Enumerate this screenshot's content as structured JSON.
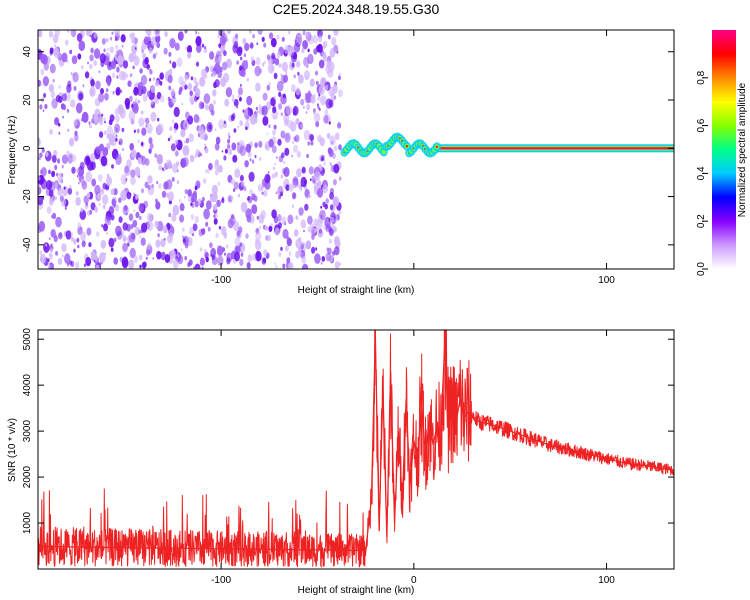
{
  "title": "C2E5.2024.348.19.55.G30",
  "spectrogram": {
    "xlabel": "Height of straight line (km)",
    "ylabel": "Frequency (Hz)",
    "xlim": [
      -195,
      135
    ],
    "ylim": [
      -50,
      49
    ],
    "x_ticks": [
      -100,
      0,
      100
    ],
    "x_tick_labels": [
      "-100",
      "",
      "100"
    ],
    "y_ticks": [
      -40,
      -20,
      0,
      20,
      40
    ],
    "y_tick_labels": [
      "-40",
      "-20",
      "0",
      "20",
      "40"
    ],
    "noise_region_x": [
      -195,
      -38
    ],
    "signal_band_hz": 0.5
  },
  "colorbar": {
    "label": "Normalized spectral amplitude",
    "range": [
      0.0,
      1.0
    ],
    "ticks": [
      0.0,
      0.2,
      0.4,
      0.6,
      0.8
    ],
    "tick_labels": [
      "0.0",
      "0.2",
      "0.4",
      "0.6",
      "0.8"
    ],
    "colors": [
      "#ffffff",
      "#cc99ff",
      "#8800ff",
      "#0000ff",
      "#00ccff",
      "#00ff88",
      "#88ff00",
      "#ffff00",
      "#ff8800",
      "#ff0000",
      "#ff0088"
    ]
  },
  "chart_data": {
    "type": "line",
    "title": "",
    "xlabel": "Height of straight line (km)",
    "ylabel": "SNR (10 * v/v)",
    "xlim": [
      -195,
      135
    ],
    "ylim": [
      0,
      5200
    ],
    "x_ticks": [
      -100,
      0,
      100
    ],
    "x_tick_labels": [
      "-100",
      "0",
      "100"
    ],
    "y_ticks": [
      1000,
      2000,
      3000,
      4000,
      5000
    ],
    "y_tick_labels": [
      "1000",
      "2000",
      "3000",
      "4000",
      "5000"
    ],
    "color": "#ee2222",
    "x": [
      -195,
      -180,
      -160,
      -140,
      -120,
      -100,
      -80,
      -60,
      -40,
      -25,
      -22,
      -20,
      -18,
      -16,
      -14,
      -12,
      -10,
      -8,
      -6,
      -4,
      -2,
      0,
      2,
      4,
      6,
      8,
      10,
      12,
      14,
      16,
      18,
      20,
      22,
      24,
      26,
      28,
      30,
      34,
      40,
      50,
      60,
      70,
      80,
      90,
      100,
      110,
      120,
      135
    ],
    "y": [
      500,
      480,
      470,
      460,
      450,
      440,
      430,
      420,
      410,
      400,
      1500,
      5100,
      900,
      3900,
      700,
      4300,
      1000,
      3000,
      1500,
      3700,
      1800,
      2800,
      2400,
      3600,
      2500,
      3200,
      2700,
      3100,
      3000,
      4900,
      3100,
      3500,
      3200,
      3700,
      3300,
      3400,
      3350,
      3200,
      3150,
      3000,
      2850,
      2700,
      2600,
      2500,
      2400,
      2300,
      2250,
      2150
    ]
  }
}
